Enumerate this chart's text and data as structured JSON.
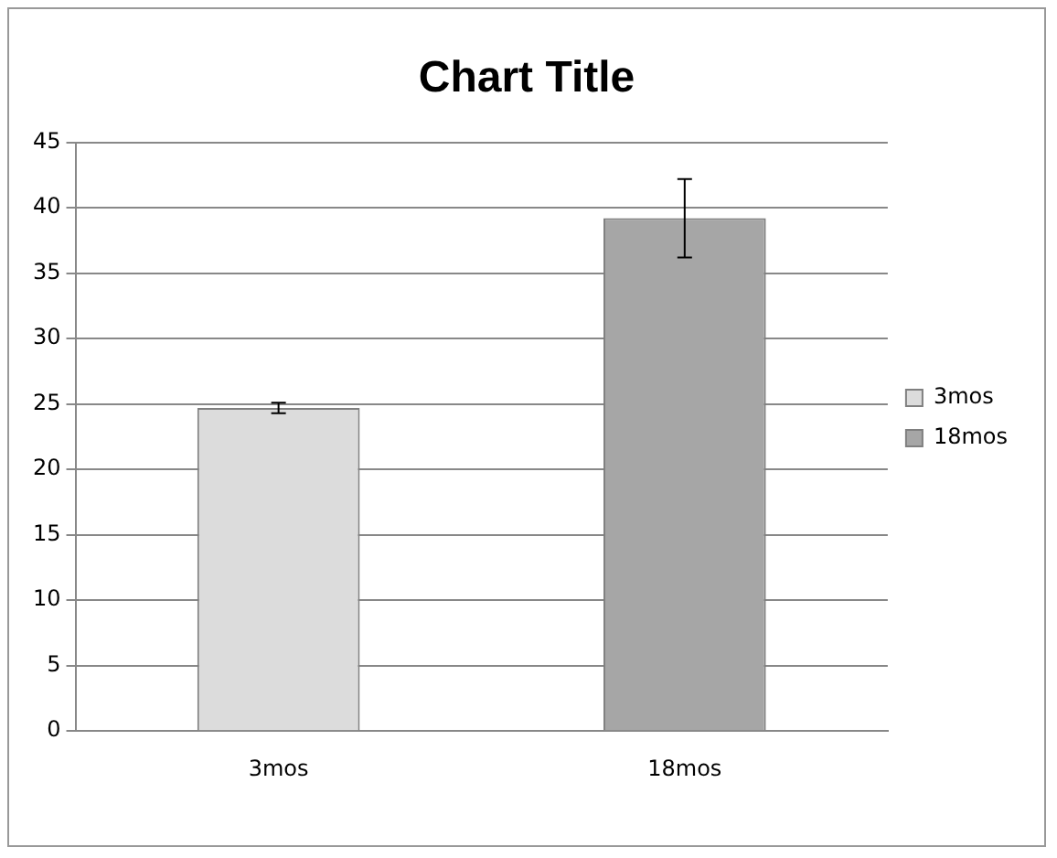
{
  "chart_data": {
    "type": "bar",
    "title": "Chart Title",
    "categories": [
      "3mos",
      "18mos"
    ],
    "series": [
      {
        "name": "3mos",
        "color": "#dcdcdc",
        "values": [
          24.7,
          null
        ],
        "errors": [
          0.4,
          null
        ]
      },
      {
        "name": "18mos",
        "color": "#a6a6a6",
        "values": [
          null,
          39.2
        ],
        "errors": [
          null,
          3
        ]
      }
    ],
    "ylim": [
      0,
      45
    ],
    "yticks": [
      0,
      5,
      10,
      15,
      20,
      25,
      30,
      35,
      40,
      45
    ],
    "grid": "y",
    "legend": "right"
  }
}
